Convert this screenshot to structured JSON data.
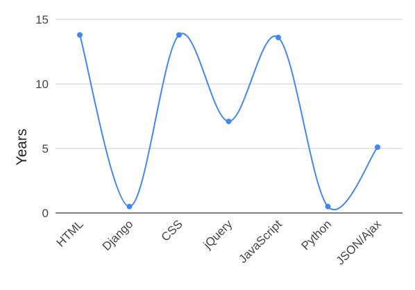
{
  "chart_data": {
    "type": "line",
    "smooth": true,
    "categories": [
      "HTML",
      "Django",
      "CSS",
      "jQuery",
      "JavaScript",
      "Python",
      "JSON/Ajax"
    ],
    "series": [
      {
        "values": [
          13.8,
          0.5,
          13.8,
          7.1,
          13.6,
          0.5,
          5.1
        ]
      }
    ],
    "title": "",
    "xlabel": "",
    "ylabel": "Years",
    "ylim": [
      0,
      15
    ],
    "yticks": [
      "0",
      "5",
      "10",
      "15"
    ],
    "grid": true,
    "legend": "none",
    "colors": {
      "line": "#4285f4",
      "grid": "#cccccc",
      "baseline": "#333333"
    }
  }
}
